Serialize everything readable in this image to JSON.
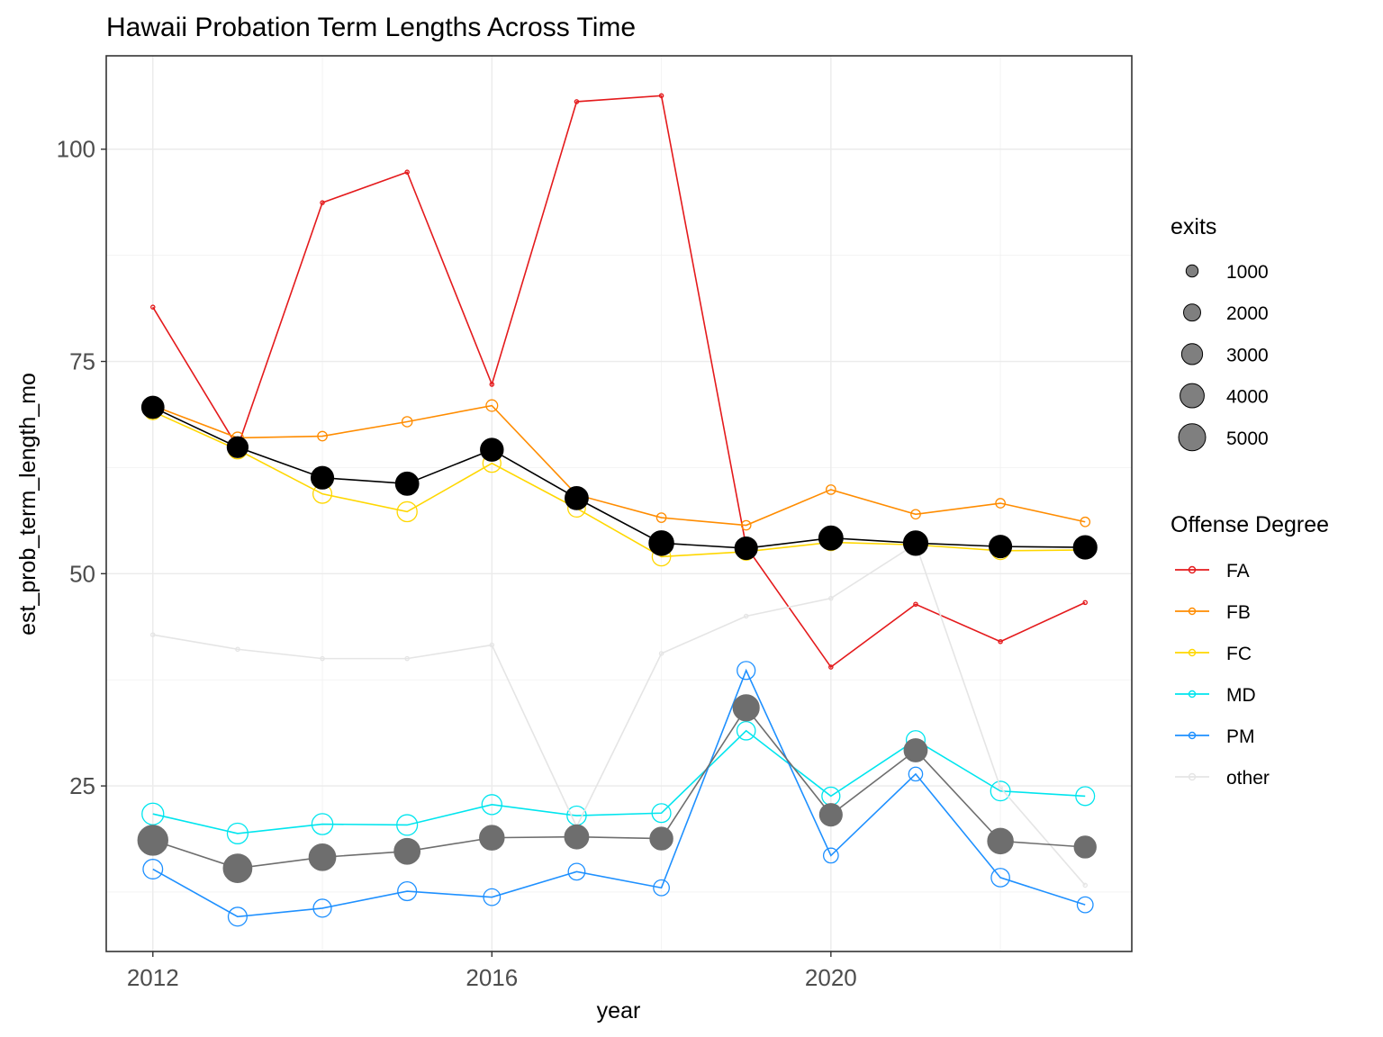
{
  "chart_data": {
    "type": "line",
    "title": "Hawaii Probation Term Lengths Across Time",
    "xlabel": "year",
    "ylabel": "est_prob_term_length_mo",
    "xlim": [
      2011.45,
      2023.55
    ],
    "ylim": [
      5.5,
      111
    ],
    "x_ticks": [
      2012,
      2016,
      2020
    ],
    "x_tick_labels": [
      "2012",
      "2016",
      "2020"
    ],
    "y_ticks": [
      25,
      50,
      75,
      100
    ],
    "y_tick_labels": [
      "25",
      "50",
      "75",
      "100"
    ],
    "grid": true,
    "x": [
      2012,
      2013,
      2014,
      2015,
      2016,
      2017,
      2018,
      2019,
      2020,
      2021,
      2022,
      2023
    ],
    "size_legend": {
      "title": "exits",
      "values": [
        1000,
        2000,
        3000,
        4000,
        5000
      ],
      "labels": [
        "1000",
        "2000",
        "3000",
        "4000",
        "5000"
      ]
    },
    "color_legend": {
      "title": "Offense Degree",
      "entries": [
        {
          "label": "FA",
          "color": "#e41a1c"
        },
        {
          "label": "FB",
          "color": "#ff8c00"
        },
        {
          "label": "FC",
          "color": "#ffd700"
        },
        {
          "label": "MD",
          "color": "#00e5ee"
        },
        {
          "label": "PM",
          "color": "#1e90ff"
        },
        {
          "label": "other",
          "color": "#e5e5e5"
        }
      ]
    },
    "series": [
      {
        "name": "FA",
        "color": "#e41a1c",
        "style": "hollow",
        "values": [
          81.4,
          64.9,
          93.7,
          97.3,
          72.3,
          105.6,
          106.3,
          53.2,
          39.0,
          46.4,
          42.0,
          46.6
        ],
        "exits": [
          100,
          100,
          100,
          100,
          100,
          100,
          100,
          100,
          100,
          100,
          100,
          100
        ]
      },
      {
        "name": "FB",
        "color": "#ff8c00",
        "style": "hollow",
        "values": [
          69.8,
          66.0,
          66.2,
          67.9,
          69.8,
          59.3,
          56.6,
          55.7,
          59.9,
          57.0,
          58.3,
          56.1
        ],
        "exits": [
          600,
          900,
          600,
          700,
          900,
          800,
          600,
          600,
          600,
          600,
          600,
          600
        ]
      },
      {
        "name": "FC",
        "color": "#ffd700",
        "style": "hollow",
        "values": [
          69.1,
          64.6,
          59.4,
          57.3,
          63.0,
          57.7,
          52.0,
          52.6,
          53.7,
          53.4,
          52.7,
          52.8
        ],
        "exits": [
          1800,
          2300,
          2400,
          2700,
          2200,
          2100,
          2300,
          2000,
          1900,
          1900,
          2100,
          2200
        ]
      },
      {
        "name": "MD",
        "color": "#00e5ee",
        "style": "hollow",
        "values": [
          21.7,
          19.4,
          20.5,
          20.4,
          22.8,
          21.5,
          21.8,
          31.5,
          23.8,
          30.4,
          24.4,
          23.8
        ],
        "exits": [
          3200,
          2900,
          3000,
          2900,
          2700,
          2500,
          2400,
          2300,
          2200,
          2400,
          2600,
          2400
        ]
      },
      {
        "name": "PM",
        "color": "#1e90ff",
        "style": "hollow",
        "values": [
          15.2,
          9.6,
          10.6,
          12.6,
          11.9,
          14.9,
          13.0,
          38.6,
          16.8,
          26.4,
          14.2,
          11.0
        ],
        "exits": [
          2600,
          2400,
          2200,
          2400,
          1900,
          1900,
          1700,
          2200,
          1500,
          1300,
          2300,
          1700
        ]
      },
      {
        "name": "other",
        "color": "#e5e5e5",
        "style": "hollow",
        "values": [
          42.8,
          41.1,
          40.0,
          40.0,
          41.6,
          20.2,
          40.6,
          45.0,
          47.1,
          53.5,
          24.8,
          13.3
        ],
        "exits": [
          100,
          100,
          100,
          100,
          100,
          100,
          100,
          100,
          100,
          100,
          100,
          100
        ]
      },
      {
        "name": "",
        "color": "#000000",
        "style": "filled",
        "values": [
          69.6,
          64.9,
          61.3,
          60.6,
          64.6,
          58.9,
          53.6,
          53.0,
          54.2,
          53.6,
          53.2,
          53.1
        ],
        "exits": [
          3400,
          3000,
          3500,
          3700,
          3600,
          3700,
          4200,
          3500,
          4000,
          4100,
          3500,
          3800
        ]
      },
      {
        "name": "",
        "color": "#6e6e6e",
        "style": "filled",
        "values": [
          18.6,
          15.3,
          16.6,
          17.3,
          18.9,
          19.0,
          18.8,
          34.2,
          21.6,
          29.2,
          18.5,
          17.8
        ],
        "exits": [
          6200,
          5600,
          4900,
          4600,
          4200,
          4000,
          3600,
          4700,
          3500,
          3700,
          4500,
          3300
        ]
      }
    ]
  }
}
